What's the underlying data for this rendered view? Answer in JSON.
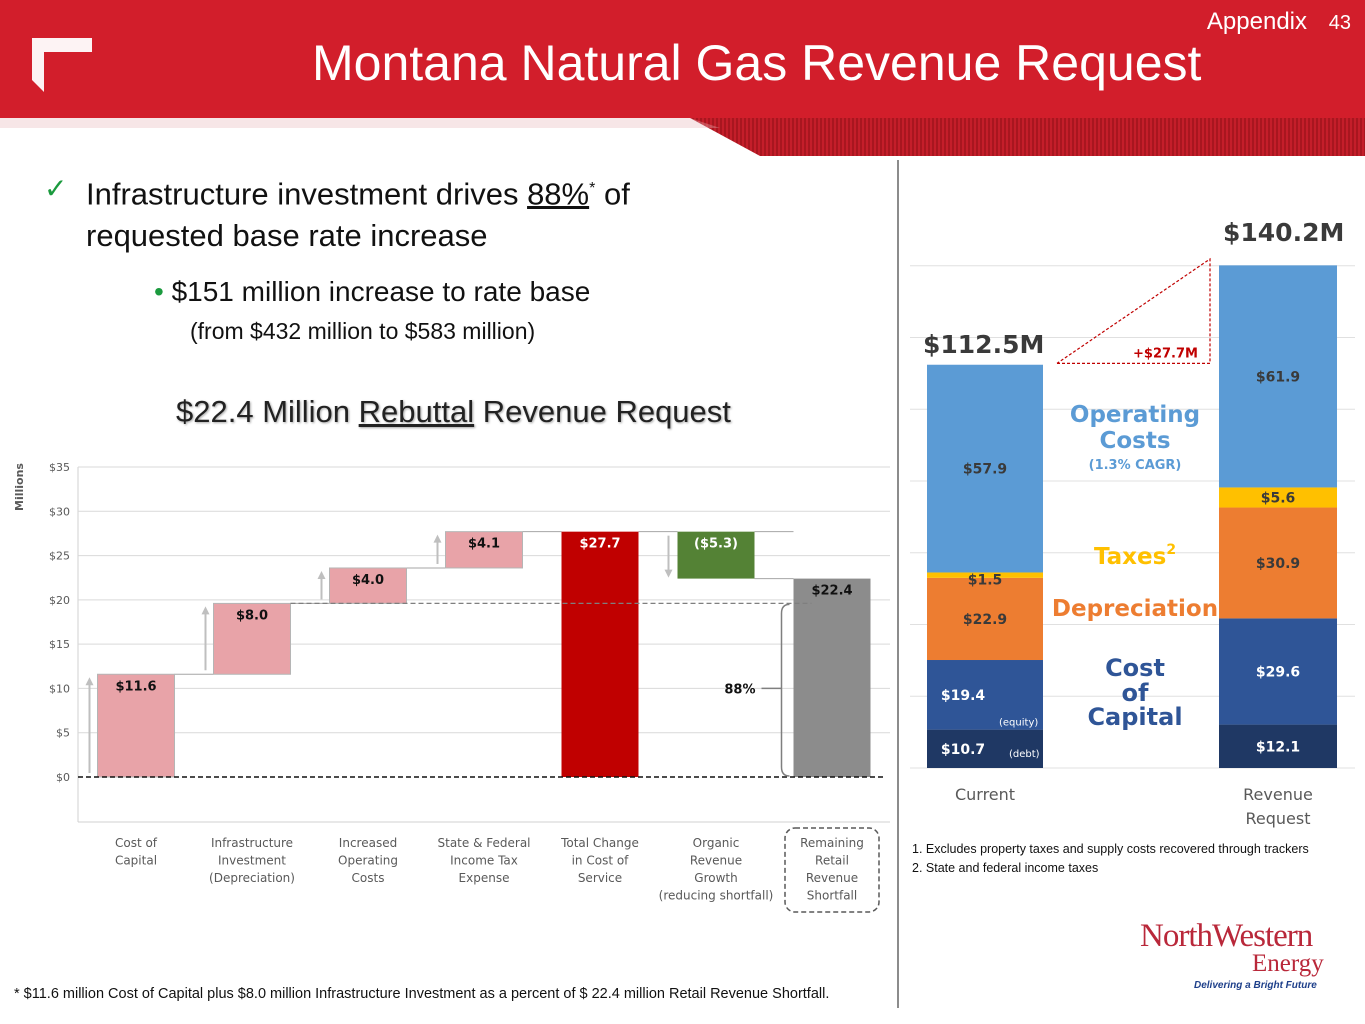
{
  "header": {
    "appendix_label": "Appendix",
    "page_number": "43",
    "title": "Montana Natural Gas Revenue Request"
  },
  "bullets": {
    "main_pre": "Infrastructure investment drives ",
    "main_pct": "88%",
    "main_star": "*",
    "main_post": " of requested base rate increase",
    "sub_dot": "•",
    "sub": "$151 million increase to rate base",
    "sub_detail": "(from $432 million to $583 million)"
  },
  "waterfall_title": {
    "pre": "$22.4 Million ",
    "underlined": "Rebuttal",
    "post": " Revenue Request"
  },
  "chart_data": [
    {
      "type": "bar",
      "subtype": "waterfall",
      "ylabel": "Millions",
      "ylim": [
        0,
        35
      ],
      "yticks": [
        "$0",
        "$5",
        "$10",
        "$15",
        "$20",
        "$25",
        "$30",
        "$35"
      ],
      "grid": true,
      "categories": [
        [
          "Cost of",
          "Capital"
        ],
        [
          "Infrastructure",
          "Investment",
          "(Depreciation)"
        ],
        [
          "Increased",
          "Operating",
          "Costs"
        ],
        [
          "State & Federal",
          "Income Tax",
          "Expense"
        ],
        [
          "Total Change",
          "in Cost of",
          "Service"
        ],
        [
          "Organic",
          "Revenue",
          "Growth",
          "(reducing shortfall)"
        ],
        [
          "Remaining",
          "Retail",
          "Revenue",
          "Shortfall"
        ]
      ],
      "bars": [
        {
          "base": 0,
          "value": 11.6,
          "label": "$11.6",
          "color": "#e8a3a8"
        },
        {
          "base": 11.6,
          "value": 8.0,
          "label": "$8.0",
          "color": "#e8a3a8"
        },
        {
          "base": 19.6,
          "value": 4.0,
          "label": "$4.0",
          "color": "#e8a3a8"
        },
        {
          "base": 23.6,
          "value": 4.1,
          "label": "$4.1",
          "color": "#e8a3a8"
        },
        {
          "base": 0,
          "value": 27.7,
          "label": "$27.7",
          "color": "#c00000"
        },
        {
          "base": 22.4,
          "value": 5.3,
          "label": "($5.3)",
          "color": "#548235"
        },
        {
          "base": 0,
          "value": 22.4,
          "label": "$22.4",
          "color": "#8c8c8c"
        }
      ],
      "annotation": "88%"
    },
    {
      "type": "bar",
      "subtype": "stacked",
      "categories": [
        [
          "Current"
        ],
        [
          "Revenue",
          "Request"
        ]
      ],
      "totals": [
        "$112.5M",
        "$140.2M"
      ],
      "total_values": [
        112.5,
        140.2
      ],
      "difference_label": "+$27.7M",
      "series": [
        {
          "name": "Cost of Capital (debt)",
          "values": [
            10.7,
            12.1
          ],
          "labels": [
            "$10.7",
            "$12.1"
          ],
          "color": "#1f3864"
        },
        {
          "name": "Cost of Capital (equity)",
          "values": [
            19.4,
            29.6
          ],
          "labels": [
            "$19.4",
            "$29.6"
          ],
          "color": "#2f5597"
        },
        {
          "name": "Depreciation",
          "values": [
            22.9,
            30.9
          ],
          "labels": [
            "$22.9",
            "$30.9"
          ],
          "color": "#ed7d31"
        },
        {
          "name": "Taxes",
          "values": [
            1.5,
            5.6
          ],
          "labels": [
            "$1.5",
            "$5.6"
          ],
          "color": "#ffc000"
        },
        {
          "name": "Operating Costs",
          "values": [
            57.9,
            61.9
          ],
          "labels": [
            "$57.9",
            "$61.9"
          ],
          "color": "#5b9bd5"
        }
      ],
      "small_labels": {
        "debt": "(debt)",
        "equity": "(equity)"
      },
      "middle_labels": {
        "operating_1": "Operating",
        "operating_2": "Costs",
        "cagr": "(1.3% CAGR)",
        "taxes": "Taxes",
        "taxes_sup": "2",
        "depreciation": "Depreciation",
        "capital_1": "Cost",
        "capital_2": "of",
        "capital_3": "Capital"
      },
      "middle_colors": {
        "operating": "#5b9bd5",
        "taxes": "#ffc000",
        "depreciation": "#ed7d31",
        "capital": "#2f5597"
      }
    }
  ],
  "notes": {
    "note1": "1. Excludes property taxes and supply costs recovered through trackers",
    "note2": "2. State and federal income taxes"
  },
  "footnote": "* $11.6 million Cost of Capital plus $8.0 million Infrastructure Investment as a percent of $ 22.4 million Retail Revenue Shortfall.",
  "logo": {
    "name_line1": "NorthWestern",
    "name_line2": "Energy",
    "tagline": "Delivering a Bright Future"
  }
}
